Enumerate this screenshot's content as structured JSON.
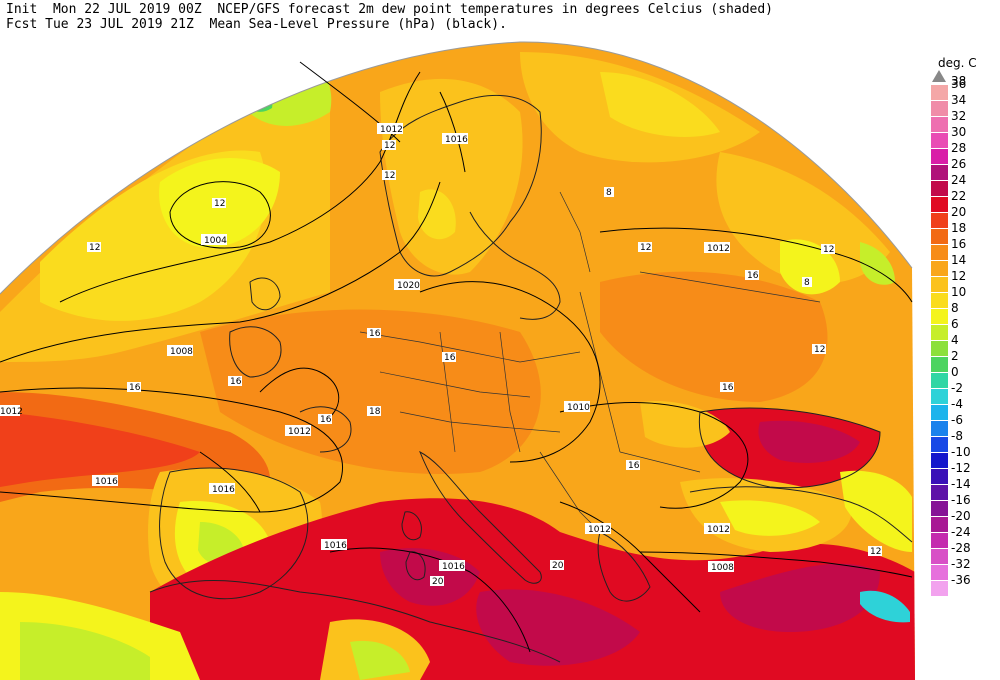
{
  "header": {
    "line1": "Init  Mon 22 JUL 2019 00Z  NCEP/GFS forecast 2m dew point temperatures in degrees Celcius (shaded)",
    "line2": "Fcst Tue 23 JUL 2019 21Z  Mean Sea-Level Pressure (hPa) (black)."
  },
  "legend": {
    "title": "deg. C",
    "top_label": "38",
    "bands": [
      {
        "label": "36",
        "color": "#f4a7a7"
      },
      {
        "label": "34",
        "color": "#f08ca8"
      },
      {
        "label": "32",
        "color": "#ee6fb0"
      },
      {
        "label": "30",
        "color": "#e94cb4"
      },
      {
        "label": "28",
        "color": "#d91ea8"
      },
      {
        "label": "26",
        "color": "#b0127a"
      },
      {
        "label": "24",
        "color": "#c20a4a"
      },
      {
        "label": "22",
        "color": "#e00a22"
      },
      {
        "label": "20",
        "color": "#f0401a"
      },
      {
        "label": "18",
        "color": "#f26a14"
      },
      {
        "label": "16",
        "color": "#f78c18"
      },
      {
        "label": "14",
        "color": "#f9a61a"
      },
      {
        "label": "12",
        "color": "#fbc21c"
      },
      {
        "label": "10",
        "color": "#fadc1e"
      },
      {
        "label": "8",
        "color": "#f4f41c"
      },
      {
        "label": "6",
        "color": "#c6ee2a"
      },
      {
        "label": "4",
        "color": "#8ce03c"
      },
      {
        "label": "2",
        "color": "#4cd460"
      },
      {
        "label": "0",
        "color": "#30d6a4"
      },
      {
        "label": "-2",
        "color": "#2ed2d8"
      },
      {
        "label": "-4",
        "color": "#1cb4ec"
      },
      {
        "label": "-6",
        "color": "#1a82ec"
      },
      {
        "label": "-8",
        "color": "#1848e6"
      },
      {
        "label": "-10",
        "color": "#1416cc"
      },
      {
        "label": "-12",
        "color": "#3a10b8"
      },
      {
        "label": "-14",
        "color": "#5e12a8"
      },
      {
        "label": "-16",
        "color": "#861296"
      },
      {
        "label": "-20",
        "color": "#a81894"
      },
      {
        "label": "-24",
        "color": "#c42aae"
      },
      {
        "label": "-28",
        "color": "#d850c6"
      },
      {
        "label": "-32",
        "color": "#e670dc"
      },
      {
        "label": "-36",
        "color": "#f2a2ee"
      }
    ]
  },
  "map": {
    "isobar_labels": [
      "1012",
      "1016",
      "1004",
      "1020",
      "1008",
      "1012",
      "1012",
      "1016",
      "1016",
      "1010",
      "1012",
      "1016",
      "1016",
      "1012",
      "1008",
      "1012",
      "1016"
    ],
    "dewpoint_labels": [
      "12",
      "12",
      "12",
      "12",
      "12",
      "16",
      "16",
      "16",
      "16",
      "16",
      "18",
      "20",
      "8",
      "8",
      "12",
      "16",
      "12",
      "16",
      "20",
      "16",
      "12"
    ]
  }
}
